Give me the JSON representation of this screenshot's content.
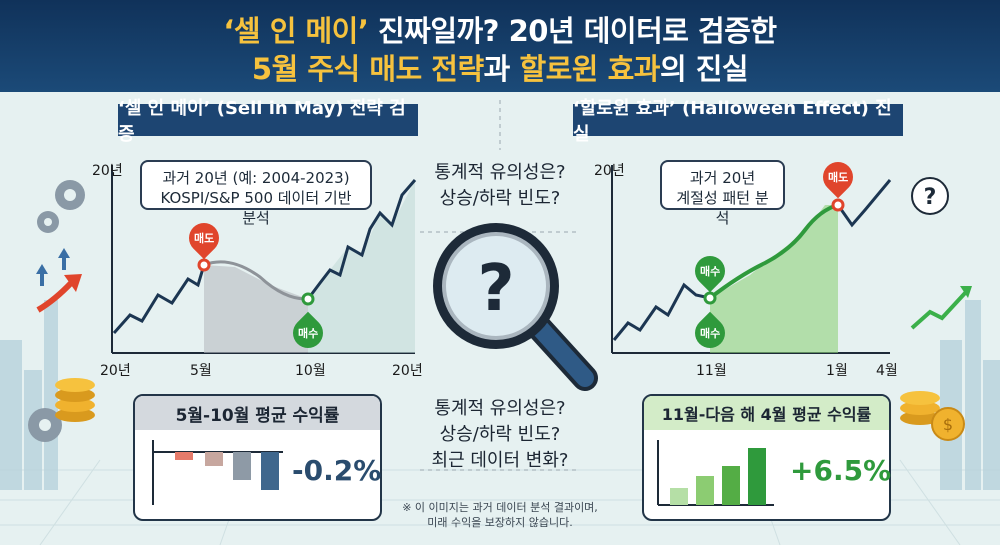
{
  "header": {
    "line1_quote": "‘셀 인 메이’",
    "line1_rest": " 진짜일까? 20년 데이터로 검증한",
    "line2_hl1": "5월 주식 매도 전략",
    "line2_mid": "과 ",
    "line2_hl2": "할로윈 효과",
    "line2_rest": "의 진실"
  },
  "left": {
    "ribbon": "‘셀 인 메이’ (Sell in May) 전략 검증",
    "callout": [
      "과거 20년 (예: 2004-2023)",
      "KOSPI/S&P 500 데이터 기반 분석"
    ],
    "y_label": "20년",
    "x_ticks": [
      "20년",
      "5월",
      "10월",
      "20년"
    ],
    "sell_tag": "매도",
    "buy_tag": "매수",
    "box_title": "5월-10월 평균 수익률",
    "box_value": "-0.2%"
  },
  "right": {
    "ribbon": "‘할로윈 효과’ (Halloween Effect) 진실",
    "callout": [
      "과거 20년",
      "계절성 패턴 분석"
    ],
    "y_label": "20년",
    "x_ticks": [
      "11월",
      "1월",
      "4월"
    ],
    "sell_tag": "매도",
    "buy_tag": "매수",
    "buy_tag2": "매수",
    "box_title": "11월-다음 해 4월 평균 수익률",
    "box_value": "+6.5%"
  },
  "center": {
    "top_lines": [
      "통계적 유의성은?",
      "상승/하락 빈도?"
    ],
    "bottom_lines": [
      "통계적 유의성은?",
      "상승/하락 빈도?",
      "최근 데이터 변화?"
    ],
    "disclaimer": [
      "※ 이 이미지는 과거 데이터 분석 결과이며,",
      "미래 수익을 보장하지 않습니다."
    ]
  },
  "colors": {
    "navy": "#1d4572",
    "gold": "#f6c23e",
    "red": "#e0452c",
    "green": "#2f9a3c"
  },
  "icons": [
    "gear-icon",
    "magnifier-question-icon",
    "question-bubble-icon",
    "coin-icon",
    "arrow-up-icon"
  ]
}
